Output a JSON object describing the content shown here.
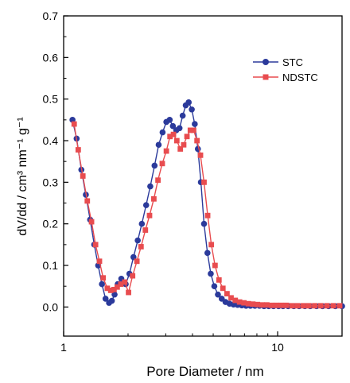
{
  "chart_data": {
    "type": "line",
    "xlabel": "Pore Diameter / nm",
    "ylabel": "dV/dd / cm³ nm⁻¹ g⁻¹",
    "x_scale": "log",
    "xlim": [
      1,
      20
    ],
    "ylim": [
      -0.07,
      0.7
    ],
    "x_ticks": [
      1,
      10
    ],
    "x_tick_labels": [
      "1",
      "10"
    ],
    "y_ticks": [
      0.0,
      0.1,
      0.2,
      0.3,
      0.4,
      0.5,
      0.6,
      0.7
    ],
    "y_tick_labels": [
      "0.0",
      "0.1",
      "0.2",
      "0.3",
      "0.4",
      "0.5",
      "0.6",
      "0.7"
    ],
    "grid": false,
    "legend_position": "top-right",
    "series": [
      {
        "name": "STC",
        "color": "#2b3a9b",
        "marker": "circle",
        "x": [
          1.1,
          1.15,
          1.21,
          1.27,
          1.33,
          1.39,
          1.45,
          1.51,
          1.57,
          1.63,
          1.68,
          1.73,
          1.79,
          1.86,
          1.95,
          2.03,
          2.12,
          2.22,
          2.32,
          2.43,
          2.54,
          2.66,
          2.78,
          2.9,
          3.02,
          3.13,
          3.24,
          3.36,
          3.48,
          3.6,
          3.72,
          3.84,
          3.97,
          4.1,
          4.24,
          4.38,
          4.53,
          4.7,
          4.87,
          5.06,
          5.26,
          5.48,
          5.71,
          5.96,
          6.22,
          6.5,
          6.8,
          7.12,
          7.46,
          7.83,
          8.22,
          8.64,
          9.09,
          9.57,
          10.1,
          10.6,
          11.2,
          11.9,
          12.6,
          13.4,
          14.2,
          15.2,
          16.2,
          17.3,
          18.6,
          20.0
        ],
        "y": [
          0.45,
          0.405,
          0.33,
          0.27,
          0.21,
          0.15,
          0.1,
          0.055,
          0.02,
          0.01,
          0.015,
          0.03,
          0.055,
          0.068,
          0.055,
          0.08,
          0.12,
          0.16,
          0.2,
          0.245,
          0.29,
          0.34,
          0.39,
          0.42,
          0.445,
          0.45,
          0.435,
          0.425,
          0.43,
          0.46,
          0.485,
          0.492,
          0.475,
          0.44,
          0.38,
          0.3,
          0.2,
          0.13,
          0.08,
          0.05,
          0.03,
          0.02,
          0.012,
          0.008,
          0.006,
          0.005,
          0.004,
          0.003,
          0.003,
          0.003,
          0.003,
          0.002,
          0.002,
          0.002,
          0.002,
          0.002,
          0.002,
          0.002,
          0.002,
          0.002,
          0.002,
          0.002,
          0.002,
          0.002,
          0.002,
          0.002
        ]
      },
      {
        "name": "NDSTC",
        "color": "#e84c4f",
        "marker": "square",
        "x": [
          1.12,
          1.17,
          1.23,
          1.29,
          1.35,
          1.41,
          1.47,
          1.53,
          1.6,
          1.66,
          1.72,
          1.78,
          1.85,
          1.93,
          2.01,
          2.1,
          2.2,
          2.3,
          2.41,
          2.52,
          2.64,
          2.76,
          2.89,
          3.02,
          3.14,
          3.26,
          3.38,
          3.51,
          3.64,
          3.77,
          3.91,
          4.05,
          4.2,
          4.36,
          4.53,
          4.71,
          4.9,
          5.1,
          5.32,
          5.55,
          5.8,
          6.06,
          6.34,
          6.64,
          6.96,
          7.3,
          7.66,
          8.05,
          8.46,
          8.9,
          9.37,
          9.87,
          10.4,
          11.0,
          11.7,
          12.4,
          13.2,
          14.0,
          14.9,
          15.9,
          17.0,
          18.2,
          19.5
        ],
        "y": [
          0.44,
          0.378,
          0.315,
          0.255,
          0.205,
          0.15,
          0.11,
          0.07,
          0.045,
          0.04,
          0.042,
          0.048,
          0.055,
          0.06,
          0.035,
          0.075,
          0.11,
          0.145,
          0.185,
          0.22,
          0.26,
          0.305,
          0.345,
          0.375,
          0.41,
          0.415,
          0.4,
          0.38,
          0.39,
          0.41,
          0.425,
          0.425,
          0.4,
          0.365,
          0.3,
          0.22,
          0.15,
          0.1,
          0.065,
          0.045,
          0.032,
          0.022,
          0.016,
          0.012,
          0.01,
          0.008,
          0.007,
          0.006,
          0.005,
          0.005,
          0.004,
          0.004,
          0.004,
          0.004,
          0.003,
          0.003,
          0.003,
          0.003,
          0.003,
          0.003,
          0.003,
          0.003,
          0.003
        ]
      }
    ]
  }
}
